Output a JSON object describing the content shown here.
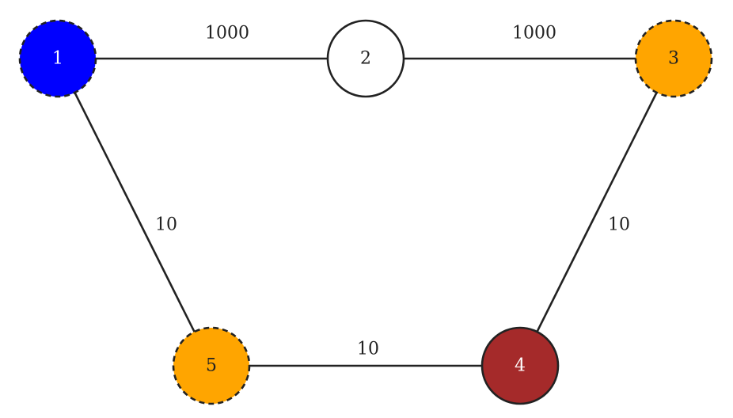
{
  "graph": {
    "nodes": [
      {
        "id": "1",
        "label": "1",
        "fill": "#0000ff",
        "text_color": "#ffffff",
        "border": "dashed"
      },
      {
        "id": "2",
        "label": "2",
        "fill": "#ffffff",
        "text_color": "#222222",
        "border": "solid"
      },
      {
        "id": "3",
        "label": "3",
        "fill": "#ffa500",
        "text_color": "#222222",
        "border": "dashed"
      },
      {
        "id": "4",
        "label": "4",
        "fill": "#a52a2a",
        "text_color": "#ffffff",
        "border": "solid"
      },
      {
        "id": "5",
        "label": "5",
        "fill": "#ffa500",
        "text_color": "#222222",
        "border": "dashed"
      }
    ],
    "edges": [
      {
        "from": "1",
        "to": "2",
        "weight": "1000"
      },
      {
        "from": "2",
        "to": "3",
        "weight": "1000"
      },
      {
        "from": "1",
        "to": "5",
        "weight": "10"
      },
      {
        "from": "3",
        "to": "4",
        "weight": "10"
      },
      {
        "from": "5",
        "to": "4",
        "weight": "10"
      }
    ]
  }
}
